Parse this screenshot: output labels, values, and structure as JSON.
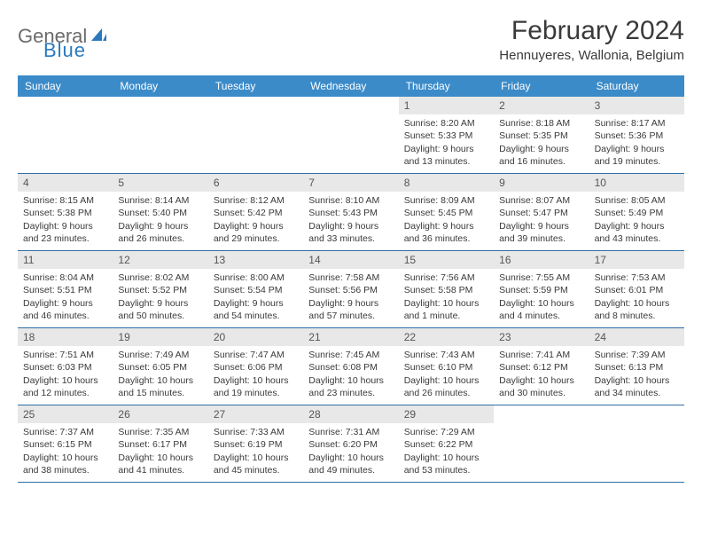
{
  "logo": {
    "text1": "General",
    "text2": "Blue"
  },
  "title": {
    "month": "February 2024",
    "location": "Hennuyeres, Wallonia, Belgium"
  },
  "colors": {
    "header_bg": "#3b8bc9",
    "header_text": "#ffffff",
    "row_divider": "#2f6fa6",
    "daynum_bg": "#e8e8e8",
    "text": "#3a3a3a",
    "logo_gray": "#6b6b6b",
    "logo_blue": "#2b79bd"
  },
  "day_names": [
    "Sunday",
    "Monday",
    "Tuesday",
    "Wednesday",
    "Thursday",
    "Friday",
    "Saturday"
  ],
  "weeks": [
    [
      null,
      null,
      null,
      null,
      {
        "n": "1",
        "sr": "Sunrise: 8:20 AM",
        "ss": "Sunset: 5:33 PM",
        "d1": "Daylight: 9 hours",
        "d2": "and 13 minutes."
      },
      {
        "n": "2",
        "sr": "Sunrise: 8:18 AM",
        "ss": "Sunset: 5:35 PM",
        "d1": "Daylight: 9 hours",
        "d2": "and 16 minutes."
      },
      {
        "n": "3",
        "sr": "Sunrise: 8:17 AM",
        "ss": "Sunset: 5:36 PM",
        "d1": "Daylight: 9 hours",
        "d2": "and 19 minutes."
      }
    ],
    [
      {
        "n": "4",
        "sr": "Sunrise: 8:15 AM",
        "ss": "Sunset: 5:38 PM",
        "d1": "Daylight: 9 hours",
        "d2": "and 23 minutes."
      },
      {
        "n": "5",
        "sr": "Sunrise: 8:14 AM",
        "ss": "Sunset: 5:40 PM",
        "d1": "Daylight: 9 hours",
        "d2": "and 26 minutes."
      },
      {
        "n": "6",
        "sr": "Sunrise: 8:12 AM",
        "ss": "Sunset: 5:42 PM",
        "d1": "Daylight: 9 hours",
        "d2": "and 29 minutes."
      },
      {
        "n": "7",
        "sr": "Sunrise: 8:10 AM",
        "ss": "Sunset: 5:43 PM",
        "d1": "Daylight: 9 hours",
        "d2": "and 33 minutes."
      },
      {
        "n": "8",
        "sr": "Sunrise: 8:09 AM",
        "ss": "Sunset: 5:45 PM",
        "d1": "Daylight: 9 hours",
        "d2": "and 36 minutes."
      },
      {
        "n": "9",
        "sr": "Sunrise: 8:07 AM",
        "ss": "Sunset: 5:47 PM",
        "d1": "Daylight: 9 hours",
        "d2": "and 39 minutes."
      },
      {
        "n": "10",
        "sr": "Sunrise: 8:05 AM",
        "ss": "Sunset: 5:49 PM",
        "d1": "Daylight: 9 hours",
        "d2": "and 43 minutes."
      }
    ],
    [
      {
        "n": "11",
        "sr": "Sunrise: 8:04 AM",
        "ss": "Sunset: 5:51 PM",
        "d1": "Daylight: 9 hours",
        "d2": "and 46 minutes."
      },
      {
        "n": "12",
        "sr": "Sunrise: 8:02 AM",
        "ss": "Sunset: 5:52 PM",
        "d1": "Daylight: 9 hours",
        "d2": "and 50 minutes."
      },
      {
        "n": "13",
        "sr": "Sunrise: 8:00 AM",
        "ss": "Sunset: 5:54 PM",
        "d1": "Daylight: 9 hours",
        "d2": "and 54 minutes."
      },
      {
        "n": "14",
        "sr": "Sunrise: 7:58 AM",
        "ss": "Sunset: 5:56 PM",
        "d1": "Daylight: 9 hours",
        "d2": "and 57 minutes."
      },
      {
        "n": "15",
        "sr": "Sunrise: 7:56 AM",
        "ss": "Sunset: 5:58 PM",
        "d1": "Daylight: 10 hours",
        "d2": "and 1 minute."
      },
      {
        "n": "16",
        "sr": "Sunrise: 7:55 AM",
        "ss": "Sunset: 5:59 PM",
        "d1": "Daylight: 10 hours",
        "d2": "and 4 minutes."
      },
      {
        "n": "17",
        "sr": "Sunrise: 7:53 AM",
        "ss": "Sunset: 6:01 PM",
        "d1": "Daylight: 10 hours",
        "d2": "and 8 minutes."
      }
    ],
    [
      {
        "n": "18",
        "sr": "Sunrise: 7:51 AM",
        "ss": "Sunset: 6:03 PM",
        "d1": "Daylight: 10 hours",
        "d2": "and 12 minutes."
      },
      {
        "n": "19",
        "sr": "Sunrise: 7:49 AM",
        "ss": "Sunset: 6:05 PM",
        "d1": "Daylight: 10 hours",
        "d2": "and 15 minutes."
      },
      {
        "n": "20",
        "sr": "Sunrise: 7:47 AM",
        "ss": "Sunset: 6:06 PM",
        "d1": "Daylight: 10 hours",
        "d2": "and 19 minutes."
      },
      {
        "n": "21",
        "sr": "Sunrise: 7:45 AM",
        "ss": "Sunset: 6:08 PM",
        "d1": "Daylight: 10 hours",
        "d2": "and 23 minutes."
      },
      {
        "n": "22",
        "sr": "Sunrise: 7:43 AM",
        "ss": "Sunset: 6:10 PM",
        "d1": "Daylight: 10 hours",
        "d2": "and 26 minutes."
      },
      {
        "n": "23",
        "sr": "Sunrise: 7:41 AM",
        "ss": "Sunset: 6:12 PM",
        "d1": "Daylight: 10 hours",
        "d2": "and 30 minutes."
      },
      {
        "n": "24",
        "sr": "Sunrise: 7:39 AM",
        "ss": "Sunset: 6:13 PM",
        "d1": "Daylight: 10 hours",
        "d2": "and 34 minutes."
      }
    ],
    [
      {
        "n": "25",
        "sr": "Sunrise: 7:37 AM",
        "ss": "Sunset: 6:15 PM",
        "d1": "Daylight: 10 hours",
        "d2": "and 38 minutes."
      },
      {
        "n": "26",
        "sr": "Sunrise: 7:35 AM",
        "ss": "Sunset: 6:17 PM",
        "d1": "Daylight: 10 hours",
        "d2": "and 41 minutes."
      },
      {
        "n": "27",
        "sr": "Sunrise: 7:33 AM",
        "ss": "Sunset: 6:19 PM",
        "d1": "Daylight: 10 hours",
        "d2": "and 45 minutes."
      },
      {
        "n": "28",
        "sr": "Sunrise: 7:31 AM",
        "ss": "Sunset: 6:20 PM",
        "d1": "Daylight: 10 hours",
        "d2": "and 49 minutes."
      },
      {
        "n": "29",
        "sr": "Sunrise: 7:29 AM",
        "ss": "Sunset: 6:22 PM",
        "d1": "Daylight: 10 hours",
        "d2": "and 53 minutes."
      },
      null,
      null
    ]
  ]
}
